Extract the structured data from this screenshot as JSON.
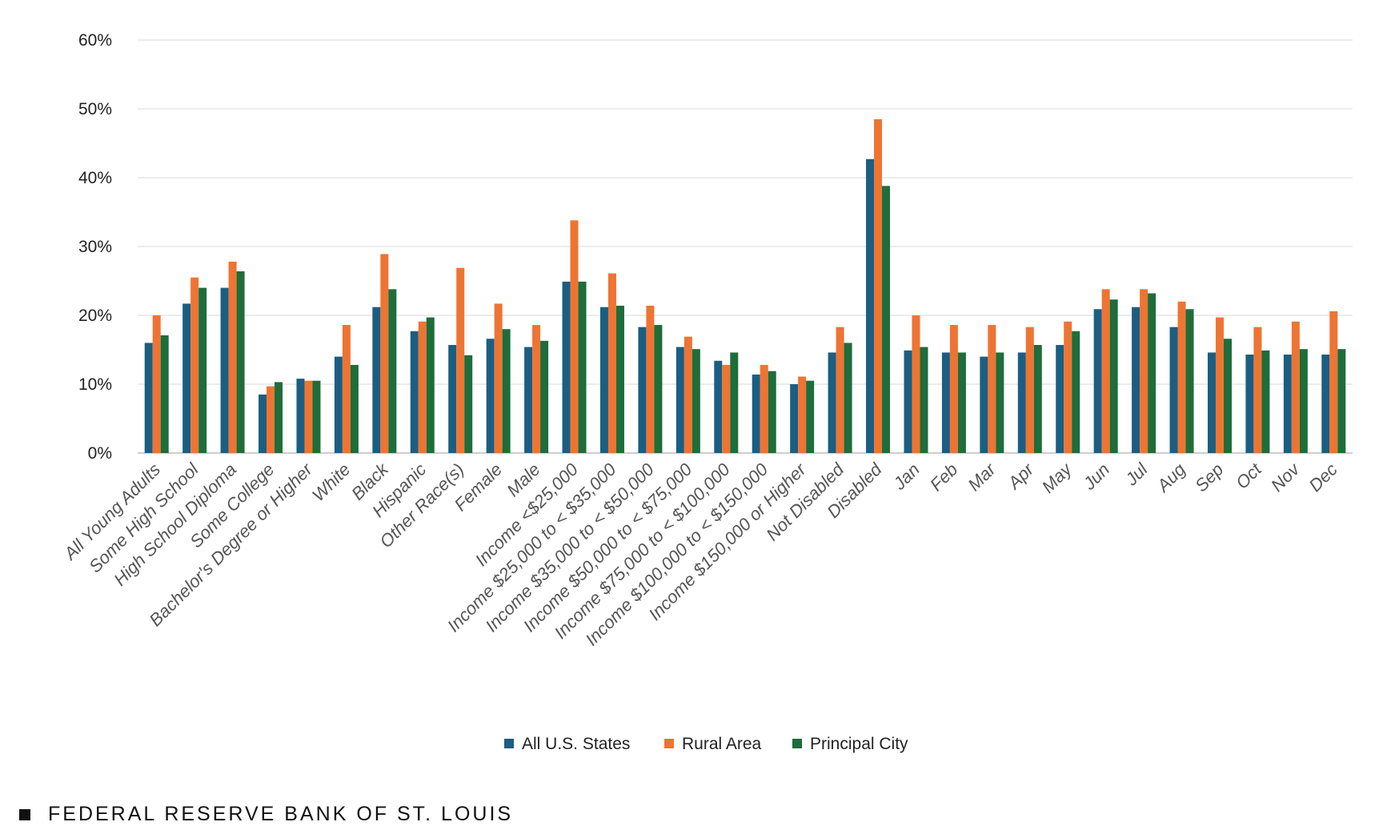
{
  "chart_data": {
    "type": "bar",
    "categories": [
      "All Young Adults",
      "Some High School",
      "High School Diploma",
      "Some College",
      "Bachelor's Degree or Higher",
      "White",
      "Black",
      "Hispanic",
      "Other Race(s)",
      "Female",
      "Male",
      "Income <$25,000",
      "Income $25,000 to < $35,000",
      "Income $35,000 to < $50,000",
      "Income $50,000 to < $75,000",
      "Income $75,000 to < $100,000",
      "Income $100,000 to < $150,000",
      "Income $150,000 or Higher",
      "Not Disabled",
      "Disabled",
      "Jan",
      "Feb",
      "Mar",
      "Apr",
      "May",
      "Jun",
      "Jul",
      "Aug",
      "Sep",
      "Oct",
      "Nov",
      "Dec"
    ],
    "series": [
      {
        "name": "All U.S. States",
        "color": "#1b5e82",
        "values": [
          16,
          21.7,
          24,
          8.5,
          10.8,
          14,
          21.2,
          17.7,
          15.7,
          16.6,
          15.4,
          24.9,
          21.2,
          18.3,
          15.4,
          13.4,
          11.4,
          10,
          14.6,
          42.7,
          14.9,
          14.6,
          14,
          14.6,
          15.7,
          20.9,
          21.2,
          18.3,
          14.6,
          14.3,
          14.3,
          14.3
        ]
      },
      {
        "name": "Rural Area",
        "color": "#ee7433",
        "values": [
          20,
          25.5,
          27.8,
          9.7,
          10.5,
          18.6,
          28.9,
          19.1,
          26.9,
          21.7,
          18.6,
          33.8,
          26.1,
          21.4,
          16.9,
          12.8,
          12.8,
          11.1,
          18.3,
          48.5,
          20,
          18.6,
          18.6,
          18.3,
          19.1,
          23.8,
          23.8,
          22,
          19.7,
          18.3,
          19.1,
          20.6
        ]
      },
      {
        "name": "Principal City",
        "color": "#1e6d3a",
        "values": [
          17.1,
          24,
          26.4,
          10.3,
          10.5,
          12.8,
          23.8,
          19.7,
          14.2,
          18,
          16.3,
          24.9,
          21.4,
          18.6,
          15.1,
          14.6,
          11.9,
          10.5,
          16,
          38.8,
          15.4,
          14.6,
          14.6,
          15.7,
          17.7,
          22.3,
          23.2,
          20.9,
          16.6,
          14.9,
          15.1,
          15.1
        ]
      }
    ],
    "y_ticks": [
      "0%",
      "10%",
      "20%",
      "30%",
      "40%",
      "50%",
      "60%"
    ],
    "ylim": [
      0,
      60
    ],
    "grid": true,
    "legend_position": "bottom"
  },
  "footer": {
    "text": "FEDERAL RESERVE BANK OF ST. LOUIS"
  }
}
